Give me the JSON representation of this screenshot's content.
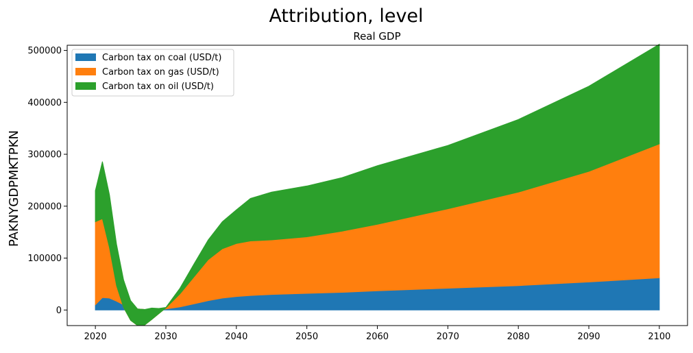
{
  "figure": {
    "suptitle": "Attribution, level",
    "title": "Real GDP",
    "ylabel": "PAKNYGDPMKTPKN"
  },
  "chart_data": {
    "type": "area",
    "stacked": true,
    "title": "Real GDP",
    "suptitle": "Attribution, level",
    "xlabel": "",
    "ylabel": "PAKNYGDPMKTPKN",
    "xlim": [
      2016,
      2104
    ],
    "ylim": [
      -30000,
      510000
    ],
    "xticks": [
      2020,
      2030,
      2040,
      2050,
      2060,
      2070,
      2080,
      2090,
      2100
    ],
    "yticks": [
      0,
      100000,
      200000,
      300000,
      400000,
      500000
    ],
    "legend": "top-left",
    "grid": false,
    "x": [
      2020,
      2021,
      2022,
      2023,
      2024,
      2025,
      2026,
      2027,
      2028,
      2029,
      2030,
      2032,
      2034,
      2036,
      2038,
      2040,
      2042,
      2045,
      2050,
      2055,
      2060,
      2070,
      2080,
      2090,
      2100
    ],
    "series": [
      {
        "name": "Carbon tax on coal (USD/t)",
        "color": "#1f77b4",
        "values": [
          10000,
          24000,
          23000,
          17000,
          10000,
          5000,
          2000,
          1000,
          800,
          1000,
          2000,
          6000,
          12000,
          18000,
          23000,
          26000,
          28000,
          30000,
          32000,
          34000,
          37000,
          42000,
          47000,
          54000,
          62000
        ]
      },
      {
        "name": "Carbon tax on gas (USD/t)",
        "color": "#ff7f0e",
        "values": [
          160000,
          152000,
          97000,
          30000,
          -5000,
          -25000,
          -32000,
          -30000,
          -19000,
          -8000,
          2000,
          25000,
          52000,
          79000,
          95000,
          102000,
          105000,
          105000,
          109000,
          118000,
          128000,
          153000,
          180000,
          213000,
          258000
        ]
      },
      {
        "name": "Carbon tax on oil (USD/t)",
        "color": "#2ca02c",
        "values": [
          60000,
          110000,
          102000,
          80000,
          53000,
          38000,
          32000,
          30000,
          22000,
          10000,
          1000,
          11000,
          25000,
          38000,
          52000,
          65000,
          82000,
          92000,
          98000,
          103000,
          113000,
          122000,
          140000,
          164000,
          192000
        ]
      }
    ]
  }
}
